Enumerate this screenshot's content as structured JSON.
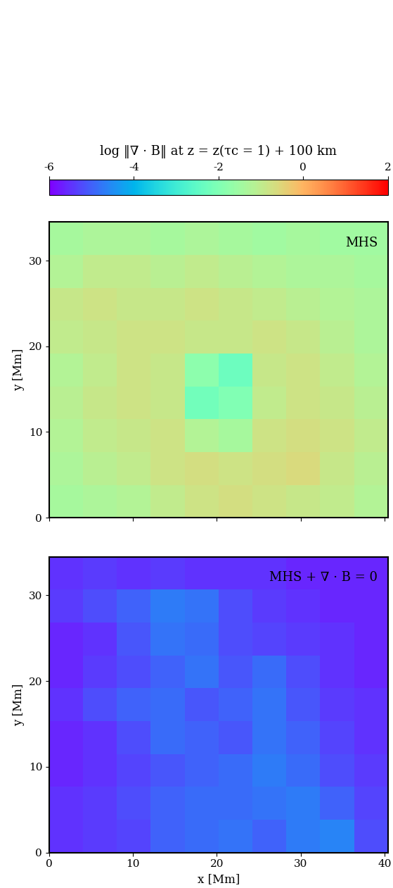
{
  "chart_data": [
    {
      "type": "heatmap",
      "annotation": "MHS",
      "color": "rainbow",
      "ylabel": "y [Mm]",
      "tick_labels": "y",
      "xlim": [
        0,
        40.4
      ],
      "ylim": [
        0,
        34.5
      ],
      "xticks": [
        0,
        10,
        20,
        30,
        40
      ],
      "yticks": [
        0,
        10,
        20,
        30
      ],
      "colorbar": {
        "label": "log ‖∇ · B‖ at z = z(τc = 1) + 100 km",
        "range": [
          -6,
          2
        ],
        "ticks": [
          -6,
          -4,
          -2,
          0,
          2
        ]
      },
      "cells": [
        [
          -1.4,
          -1.3,
          -1.2,
          -1.0,
          -0.8,
          -0.7,
          -0.8,
          -0.9,
          -1.0,
          -1.2
        ],
        [
          -1.3,
          -1.1,
          -1.0,
          -0.8,
          -0.7,
          -0.8,
          -0.7,
          -0.6,
          -0.9,
          -1.1
        ],
        [
          -1.2,
          -1.0,
          -0.9,
          -0.8,
          -1.2,
          -1.4,
          -0.8,
          -0.7,
          -0.8,
          -1.0
        ],
        [
          -1.1,
          -0.9,
          -0.8,
          -0.9,
          -2.2,
          -2.0,
          -1.0,
          -0.8,
          -0.9,
          -1.1
        ],
        [
          -1.2,
          -1.0,
          -0.8,
          -0.9,
          -1.8,
          -2.3,
          -0.9,
          -0.8,
          -1.0,
          -1.2
        ],
        [
          -1.0,
          -0.9,
          -0.8,
          -0.8,
          -0.9,
          -0.9,
          -0.8,
          -0.9,
          -1.1,
          -1.3
        ],
        [
          -0.9,
          -0.8,
          -0.9,
          -0.9,
          -0.8,
          -0.9,
          -1.0,
          -1.1,
          -1.2,
          -1.3
        ],
        [
          -1.2,
          -1.0,
          -1.0,
          -1.1,
          -1.0,
          -1.1,
          -1.2,
          -1.3,
          -1.3,
          -1.4
        ],
        [
          -1.4,
          -1.3,
          -1.3,
          -1.4,
          -1.3,
          -1.4,
          -1.5,
          -1.4,
          -1.5,
          -1.5
        ]
      ]
    },
    {
      "type": "heatmap",
      "annotation": "MHS + ∇ · B = 0",
      "color": "rainbow",
      "xlabel": "x [Mm]",
      "ylabel": "y [Mm]",
      "xlim": [
        0,
        40.4
      ],
      "ylim": [
        0,
        34.5
      ],
      "xticks": [
        0,
        10,
        20,
        30,
        40
      ],
      "yticks": [
        0,
        10,
        20,
        30
      ],
      "cells": [
        [
          -5.5,
          -5.4,
          -5.3,
          -5.0,
          -4.9,
          -4.8,
          -5.0,
          -4.7,
          -4.6,
          -5.2
        ],
        [
          -5.5,
          -5.4,
          -5.2,
          -5.0,
          -4.9,
          -4.9,
          -4.8,
          -4.7,
          -5.0,
          -5.3
        ],
        [
          -5.6,
          -5.5,
          -5.3,
          -5.1,
          -5.0,
          -4.9,
          -4.7,
          -4.9,
          -5.2,
          -5.4
        ],
        [
          -5.6,
          -5.5,
          -5.2,
          -4.9,
          -5.0,
          -5.1,
          -4.8,
          -5.0,
          -5.3,
          -5.5
        ],
        [
          -5.5,
          -5.2,
          -5.0,
          -4.9,
          -5.1,
          -5.0,
          -4.8,
          -5.1,
          -5.4,
          -5.5
        ],
        [
          -5.6,
          -5.4,
          -5.2,
          -5.0,
          -4.8,
          -5.1,
          -4.9,
          -5.2,
          -5.5,
          -5.6
        ],
        [
          -5.6,
          -5.5,
          -5.1,
          -4.8,
          -4.9,
          -5.2,
          -5.3,
          -5.4,
          -5.5,
          -5.6
        ],
        [
          -5.4,
          -5.2,
          -5.0,
          -4.7,
          -4.8,
          -5.2,
          -5.4,
          -5.5,
          -5.6,
          -5.6
        ],
        [
          -5.5,
          -5.4,
          -5.5,
          -5.4,
          -5.5,
          -5.5,
          -5.5,
          -5.6,
          -5.6,
          -5.6
        ]
      ]
    }
  ]
}
